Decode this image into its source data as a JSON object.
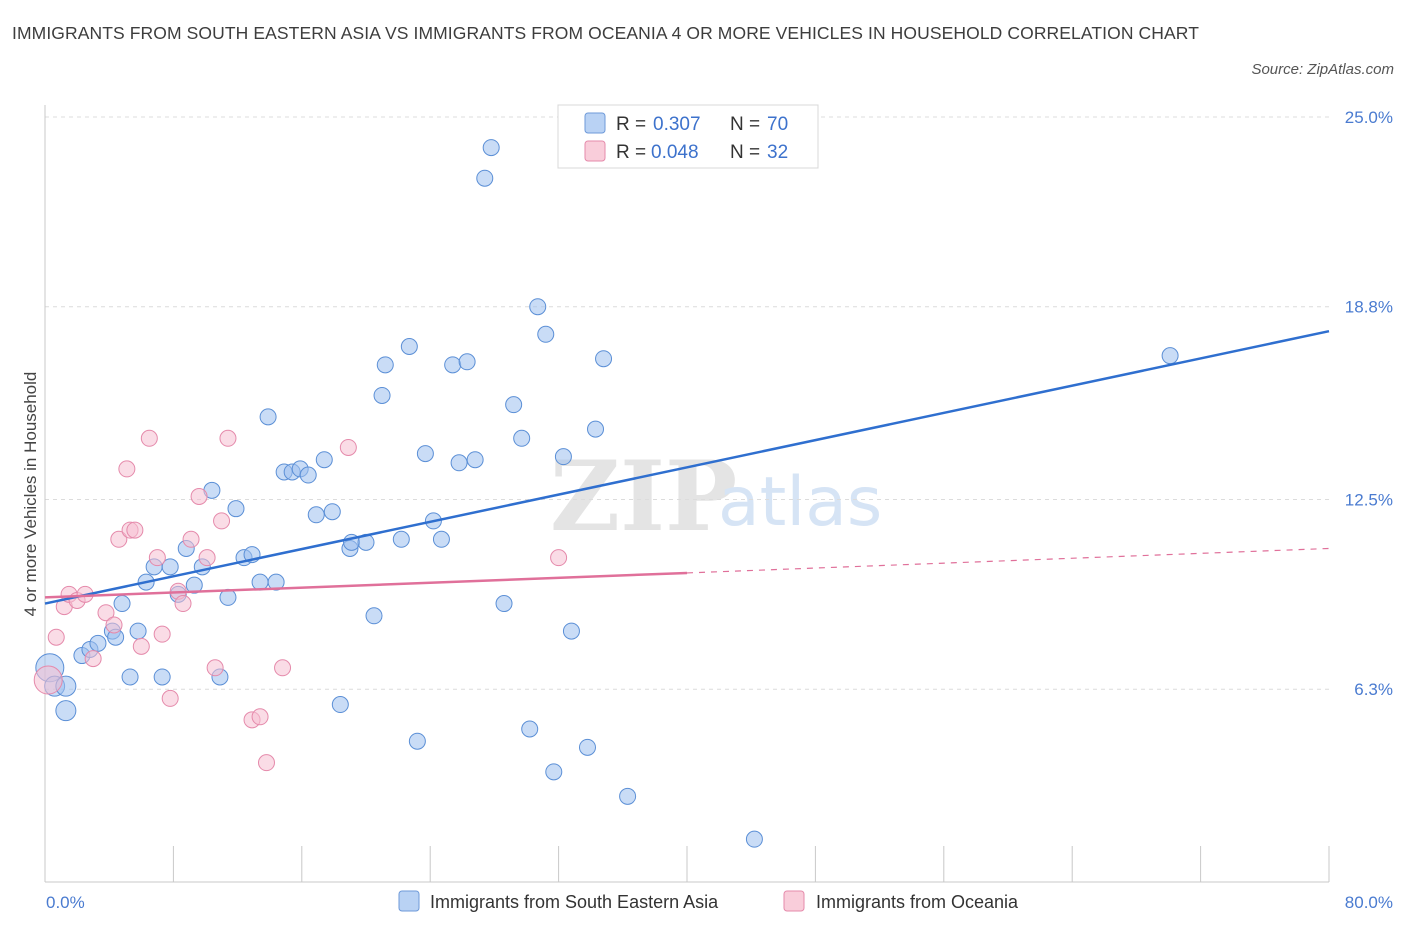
{
  "title": "IMMIGRANTS FROM SOUTH EASTERN ASIA VS IMMIGRANTS FROM OCEANIA 4 OR MORE VEHICLES IN HOUSEHOLD CORRELATION CHART",
  "source": "Source: ZipAtlas.com",
  "watermark": {
    "zip": "ZIP",
    "atlas": "atlas"
  },
  "legend": {
    "series1": {
      "r_label": "R = ",
      "r_value": "0.307",
      "n_label": "N = ",
      "n_value": "70"
    },
    "series2": {
      "r_label": "R = ",
      "r_value": "0.048",
      "n_label": "N = ",
      "n_value": "32"
    }
  },
  "chart_data": {
    "type": "scatter",
    "title": "IMMIGRANTS FROM SOUTH EASTERN ASIA VS IMMIGRANTS FROM OCEANIA 4 OR MORE VEHICLES IN HOUSEHOLD CORRELATION CHART",
    "xlabel": "",
    "ylabel": "4 or more Vehicles in Household",
    "xlim": [
      0,
      80
    ],
    "ylim": [
      0,
      25
    ],
    "x_tick_labels": [
      "0.0%",
      "80.0%"
    ],
    "y_ticks": [
      {
        "value": 6.3,
        "label": "6.3%"
      },
      {
        "value": 12.5,
        "label": "12.5%"
      },
      {
        "value": 18.8,
        "label": "18.8%"
      },
      {
        "value": 25.0,
        "label": "25.0%"
      }
    ],
    "grid": true,
    "series": [
      {
        "name": "Immigrants from South Eastern Asia",
        "color": "#9dc0ee",
        "stroke": "#5b8fd6",
        "line_color": "#2f6fcf",
        "trend": {
          "x0": 0,
          "y0": 9.1,
          "x1": 80,
          "y1": 18.0,
          "dashed_from": null
        },
        "points": [
          [
            0.3,
            7.0,
            14
          ],
          [
            0.6,
            6.4,
            10
          ],
          [
            1.3,
            6.4,
            10
          ],
          [
            1.3,
            5.6,
            10
          ],
          [
            2.3,
            7.4,
            8
          ],
          [
            2.8,
            7.6,
            8
          ],
          [
            3.3,
            7.8,
            8
          ],
          [
            4.2,
            8.2,
            8
          ],
          [
            4.4,
            8.0,
            8
          ],
          [
            4.8,
            9.1,
            8
          ],
          [
            5.3,
            6.7,
            8
          ],
          [
            5.8,
            8.2,
            8
          ],
          [
            6.3,
            9.8,
            8
          ],
          [
            6.8,
            10.3,
            8
          ],
          [
            7.3,
            6.7,
            8
          ],
          [
            7.8,
            10.3,
            8
          ],
          [
            8.3,
            9.4,
            8
          ],
          [
            8.8,
            10.9,
            8
          ],
          [
            9.3,
            9.7,
            8
          ],
          [
            9.8,
            10.3,
            8
          ],
          [
            10.4,
            12.8,
            8
          ],
          [
            10.9,
            6.7,
            8
          ],
          [
            11.4,
            9.3,
            8
          ],
          [
            11.9,
            12.2,
            8
          ],
          [
            12.4,
            10.6,
            8
          ],
          [
            12.9,
            10.7,
            8
          ],
          [
            13.4,
            9.8,
            8
          ],
          [
            13.9,
            15.2,
            8
          ],
          [
            14.4,
            9.8,
            8
          ],
          [
            14.9,
            13.4,
            8
          ],
          [
            15.4,
            13.4,
            8
          ],
          [
            15.9,
            13.5,
            8
          ],
          [
            16.4,
            13.3,
            8
          ],
          [
            16.9,
            12.0,
            8
          ],
          [
            17.4,
            13.8,
            8
          ],
          [
            17.9,
            12.1,
            8
          ],
          [
            18.4,
            5.8,
            8
          ],
          [
            19.0,
            10.9,
            8
          ],
          [
            19.1,
            11.1,
            8
          ],
          [
            20.0,
            11.1,
            8
          ],
          [
            20.5,
            8.7,
            8
          ],
          [
            21.0,
            15.9,
            8
          ],
          [
            21.2,
            16.9,
            8
          ],
          [
            22.2,
            11.2,
            8
          ],
          [
            22.7,
            17.5,
            8
          ],
          [
            23.2,
            4.6,
            8
          ],
          [
            23.7,
            14.0,
            8
          ],
          [
            24.2,
            11.8,
            8
          ],
          [
            24.7,
            11.2,
            8
          ],
          [
            25.4,
            16.9,
            8
          ],
          [
            25.8,
            13.7,
            8
          ],
          [
            26.3,
            17.0,
            8
          ],
          [
            26.8,
            13.8,
            8
          ],
          [
            27.4,
            23.0,
            8
          ],
          [
            27.8,
            24.0,
            8
          ],
          [
            28.6,
            9.1,
            8
          ],
          [
            29.2,
            15.6,
            8
          ],
          [
            29.7,
            14.5,
            8
          ],
          [
            30.2,
            5.0,
            8
          ],
          [
            30.7,
            18.8,
            8
          ],
          [
            31.2,
            17.9,
            8
          ],
          [
            31.7,
            3.6,
            8
          ],
          [
            32.3,
            13.9,
            8
          ],
          [
            32.8,
            8.2,
            8
          ],
          [
            33.8,
            4.4,
            8
          ],
          [
            34.3,
            14.8,
            8
          ],
          [
            34.8,
            17.1,
            8
          ],
          [
            36.3,
            2.8,
            8
          ],
          [
            44.2,
            1.4,
            8
          ],
          [
            70.1,
            17.2,
            8
          ]
        ]
      },
      {
        "name": "Immigrants from Oceania",
        "color": "#f6bfd1",
        "stroke": "#e58aab",
        "line_color": "#e0709a",
        "trend": {
          "x0": 0,
          "y0": 9.3,
          "x1": 80,
          "y1": 10.9,
          "dashed_from": 40
        },
        "points": [
          [
            0.2,
            6.6,
            14
          ],
          [
            0.7,
            8.0,
            8
          ],
          [
            1.2,
            9.0,
            8
          ],
          [
            1.5,
            9.4,
            8
          ],
          [
            2.0,
            9.2,
            8
          ],
          [
            2.5,
            9.4,
            8
          ],
          [
            3.0,
            7.3,
            8
          ],
          [
            3.8,
            8.8,
            8
          ],
          [
            4.3,
            8.4,
            8
          ],
          [
            4.6,
            11.2,
            8
          ],
          [
            5.1,
            13.5,
            8
          ],
          [
            5.3,
            11.5,
            8
          ],
          [
            5.6,
            11.5,
            8
          ],
          [
            6.0,
            7.7,
            8
          ],
          [
            6.5,
            14.5,
            8
          ],
          [
            7.0,
            10.6,
            8
          ],
          [
            7.3,
            8.1,
            8
          ],
          [
            7.8,
            6.0,
            8
          ],
          [
            8.3,
            9.5,
            8
          ],
          [
            8.6,
            9.1,
            8
          ],
          [
            9.1,
            11.2,
            8
          ],
          [
            9.6,
            12.6,
            8
          ],
          [
            10.1,
            10.6,
            8
          ],
          [
            10.6,
            7.0,
            8
          ],
          [
            11.0,
            11.8,
            8
          ],
          [
            11.4,
            14.5,
            8
          ],
          [
            12.9,
            5.3,
            8
          ],
          [
            13.4,
            5.4,
            8
          ],
          [
            13.8,
            3.9,
            8
          ],
          [
            14.8,
            7.0,
            8
          ],
          [
            18.9,
            14.2,
            8
          ],
          [
            32.0,
            10.6,
            8
          ]
        ]
      }
    ]
  }
}
